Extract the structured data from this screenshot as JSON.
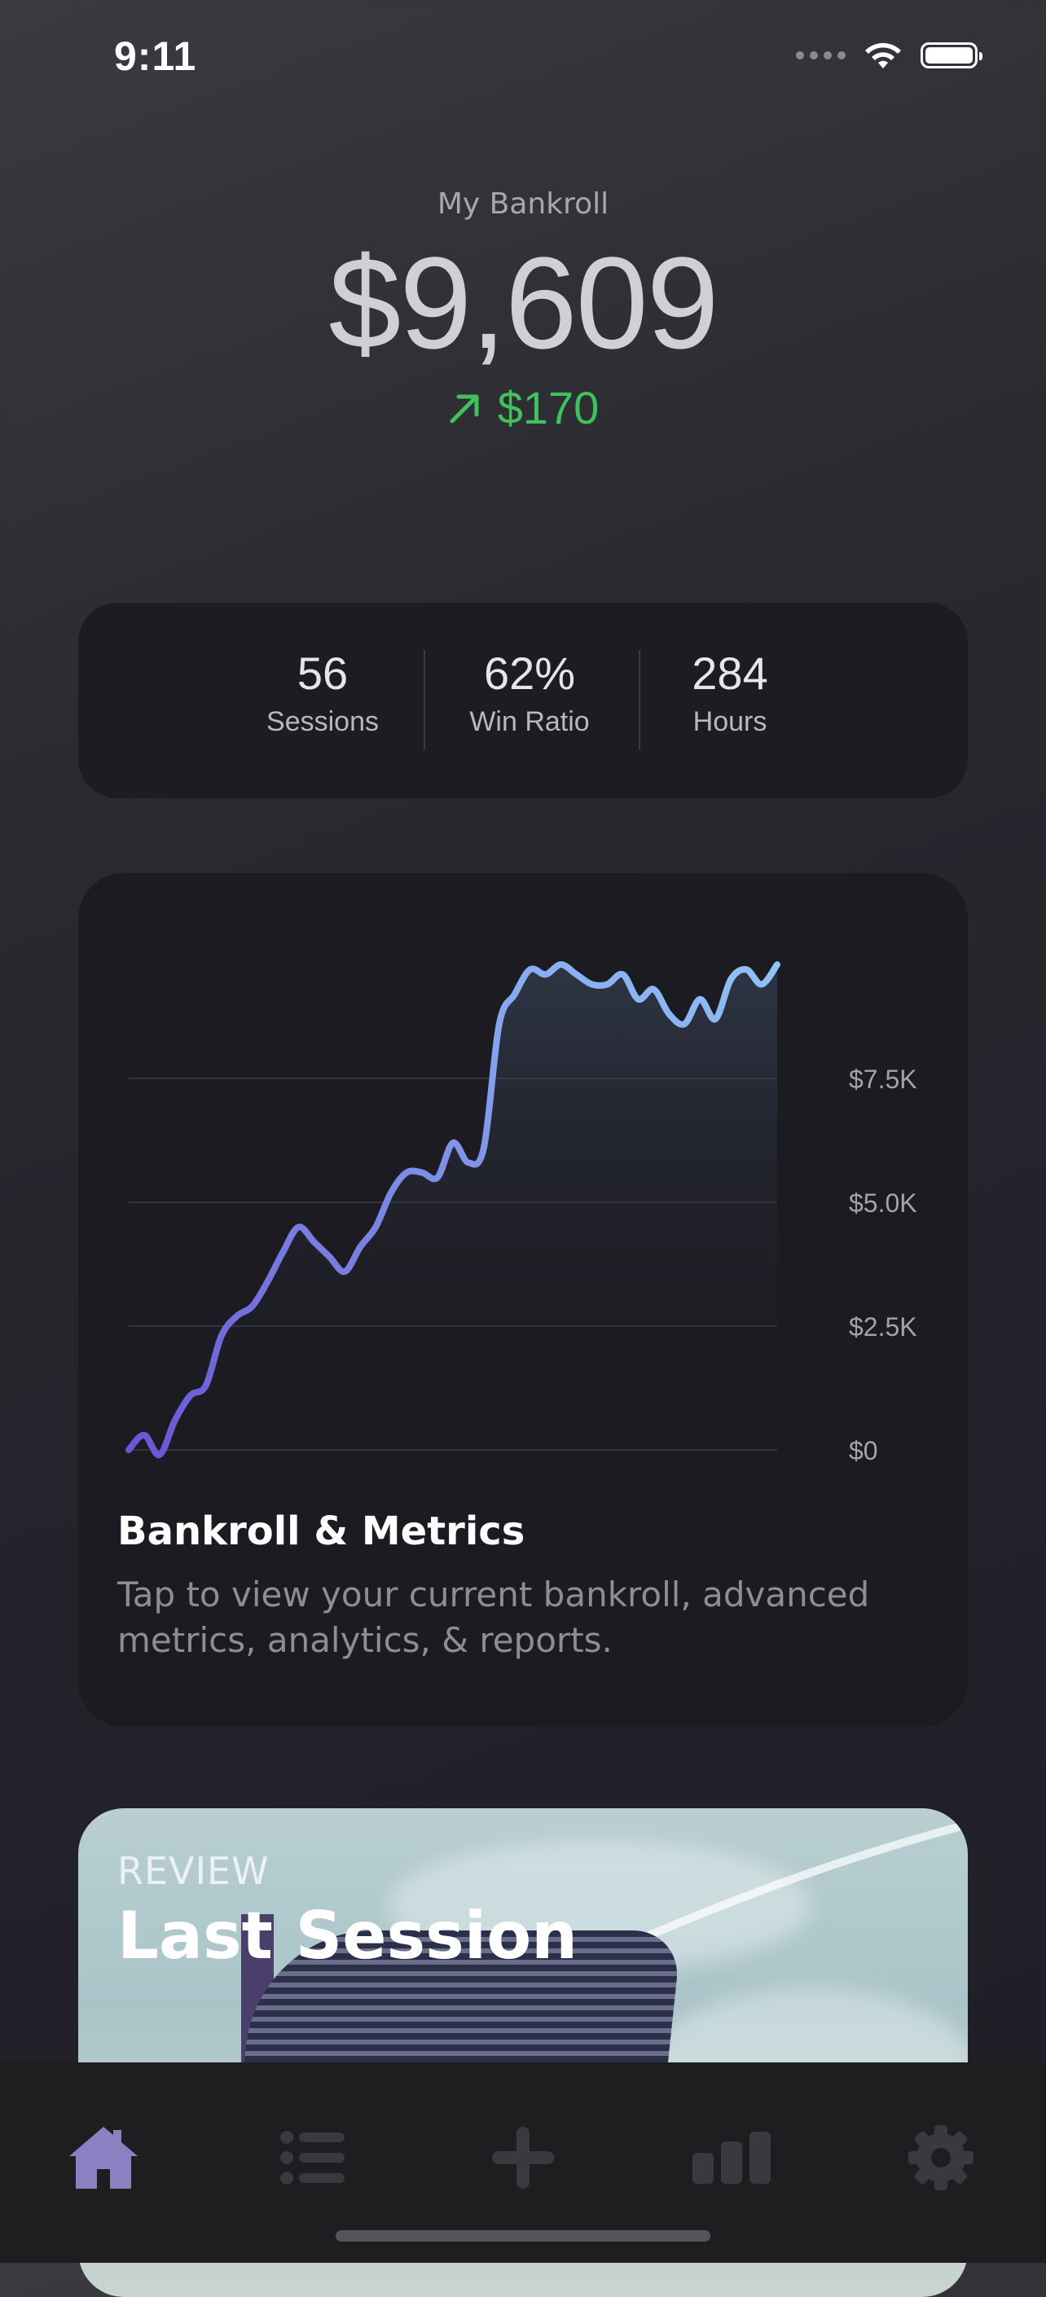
{
  "status_bar": {
    "time": "9:11"
  },
  "bankroll": {
    "title": "My Bankroll",
    "amount": "$9,609",
    "change": "$170",
    "change_color": "#3ec25a"
  },
  "stats": [
    {
      "value": "56",
      "label": "Sessions"
    },
    {
      "value": "62%",
      "label": "Win Ratio"
    },
    {
      "value": "284",
      "label": "Hours"
    }
  ],
  "chart_data": {
    "type": "area",
    "y_ticks": [
      "$7.5K",
      "$5.0K",
      "$2.5K",
      "$0"
    ],
    "ylim": [
      0,
      10000
    ],
    "grid": true,
    "values": [
      0,
      300,
      -100,
      600,
      1100,
      1300,
      2300,
      2700,
      2900,
      3400,
      4000,
      4500,
      4200,
      3900,
      3600,
      4100,
      4500,
      5200,
      5600,
      5600,
      5500,
      6200,
      5800,
      6100,
      8600,
      9200,
      9700,
      9600,
      9800,
      9600,
      9400,
      9400,
      9600,
      9100,
      9300,
      8800,
      8600,
      9100,
      8700,
      9500,
      9700,
      9400,
      9800
    ],
    "line_color_start": "#6a55d6",
    "line_color_end": "#8fc4f8"
  },
  "chart_card": {
    "title": "Bankroll & Metrics",
    "description": "Tap to view your current bankroll, advanced metrics, analytics, & reports."
  },
  "session_card": {
    "eyebrow": "REVIEW",
    "title": "Last Session"
  },
  "tab_bar": {
    "active_color": "#8c7fc2",
    "inactive_color": "#3a393e",
    "tabs": [
      {
        "icon": "home-icon",
        "active": true
      },
      {
        "icon": "list-icon",
        "active": false
      },
      {
        "icon": "plus-icon",
        "active": false
      },
      {
        "icon": "bar-chart-icon",
        "active": false
      },
      {
        "icon": "gear-icon",
        "active": false
      }
    ]
  }
}
